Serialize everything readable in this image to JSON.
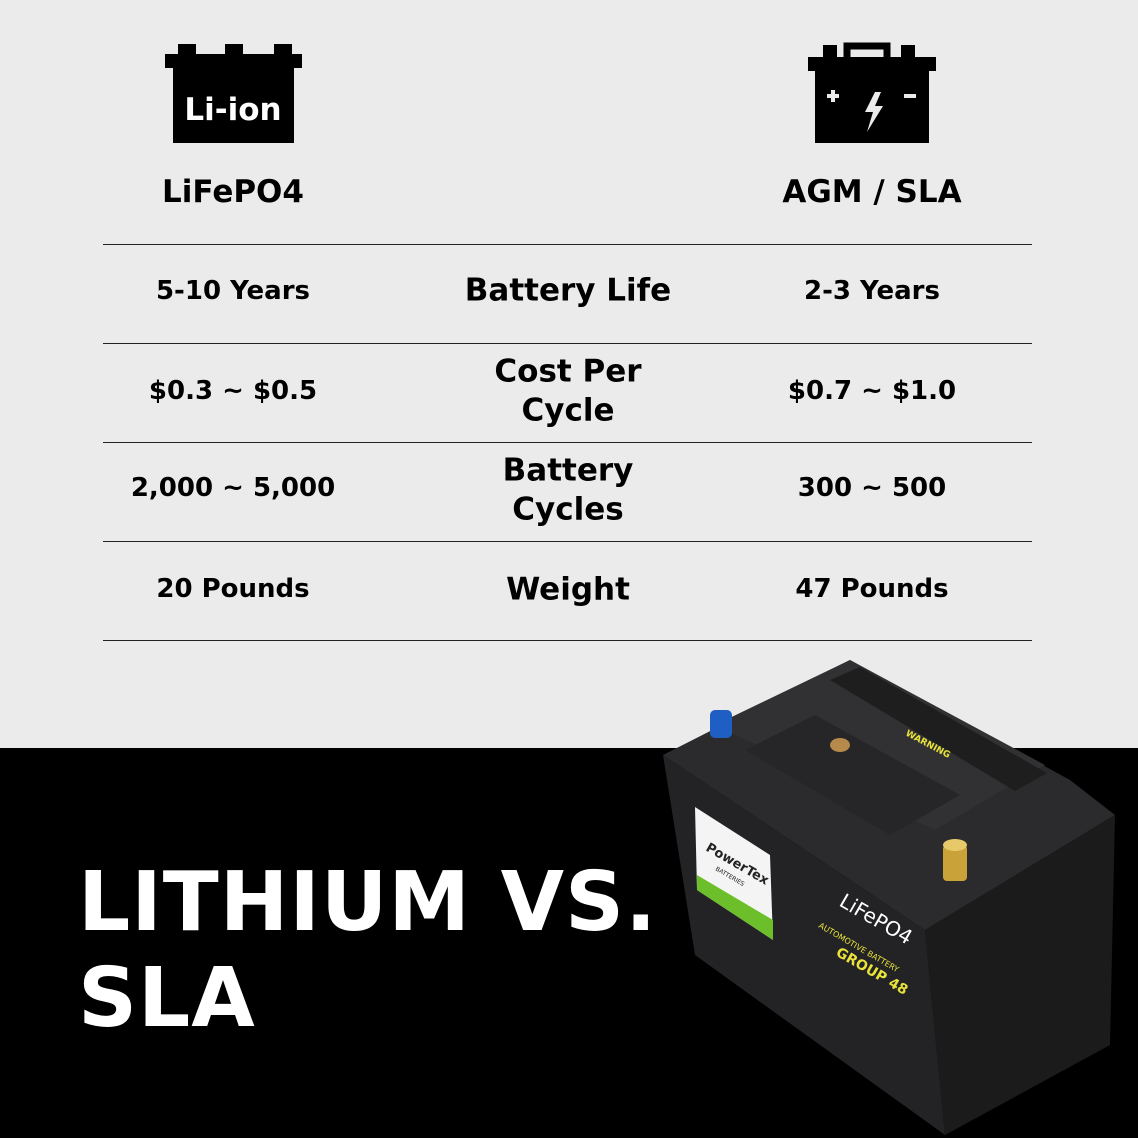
{
  "columns": {
    "left": {
      "icon": "li-ion-battery-icon",
      "icon_text": "Li-ion",
      "label": "LiFePO4"
    },
    "right": {
      "icon": "lead-acid-battery-icon",
      "label": "AGM / SLA"
    }
  },
  "rows": [
    {
      "left": "5-10 Years",
      "metric": "Battery Life",
      "right": "2-3 Years"
    },
    {
      "left": "$0.3 ~ $0.5",
      "metric": "Cost Per Cycle",
      "right": "$0.7 ~ $1.0"
    },
    {
      "left": "2,000 ~ 5,000",
      "metric": "Battery Cycles",
      "right": "300 ~ 500"
    },
    {
      "left": "20 Pounds",
      "metric": "Weight",
      "right": "47 Pounds"
    }
  ],
  "headline": {
    "line1": "LITHIUM VS.",
    "line2": "SLA"
  },
  "product_image": {
    "brand": "PowerTex",
    "brand_sub": "BATTERIES",
    "chemistry": "LiFePO4",
    "type": "AUTOMOTIVE BATTERY",
    "group": "GROUP 48",
    "warning": "WARNING"
  },
  "colors": {
    "background_top": "#ebebeb",
    "background_bottom": "#000000",
    "label_yellow": "#e8e23a",
    "brand_green": "#6cbf2a"
  }
}
